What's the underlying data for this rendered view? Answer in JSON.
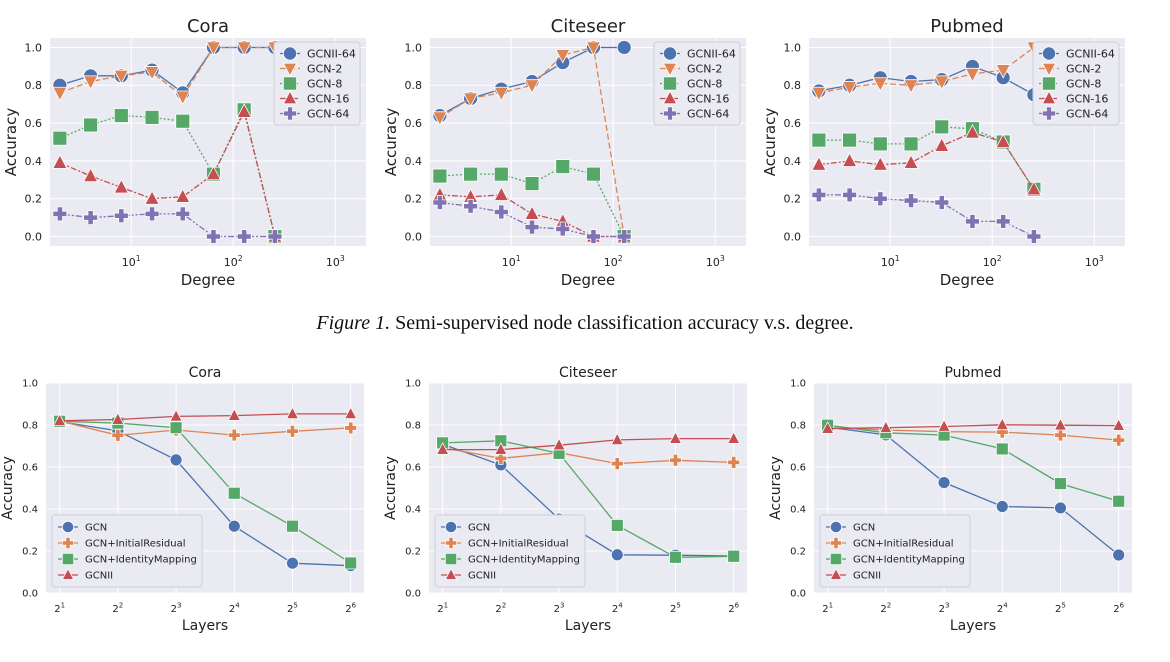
{
  "caption": {
    "label": "Figure 1.",
    "text": "Semi-supervised node classification accuracy v.s. degree."
  },
  "colors": {
    "blue": "#4c72b0",
    "orange": "#dd8452",
    "green": "#55a868",
    "red": "#c44e52",
    "purple": "#8172b3",
    "panel": "#eaeaf2"
  },
  "chart_data": [
    {
      "type": "line",
      "title": "Cora",
      "xlabel": "Degree",
      "ylabel": "Accuracy",
      "xscale": "log",
      "xlim": [
        1.6,
        2000
      ],
      "ylim": [
        -0.05,
        1.05
      ],
      "xticks": [
        10,
        100,
        1000
      ],
      "xtick_labels": [
        "10^1",
        "10^2",
        "10^3"
      ],
      "yticks": [
        0.0,
        0.2,
        0.4,
        0.6,
        0.8,
        1.0
      ],
      "ytick_labels": [
        "0.0",
        "0.2",
        "0.4",
        "0.6",
        "0.8",
        "1.0"
      ],
      "grid": true,
      "legend": "top-right",
      "series": [
        {
          "name": "GCNII-64",
          "color": "#4c72b0",
          "marker": "circle",
          "dash": "solid",
          "x": [
            2,
            4,
            8,
            16,
            32,
            64,
            128,
            256
          ],
          "y": [
            0.8,
            0.85,
            0.85,
            0.88,
            0.76,
            1.0,
            1.0,
            1.0
          ]
        },
        {
          "name": "GCN-2",
          "color": "#dd8452",
          "marker": "triangle-down",
          "dash": "dash",
          "x": [
            2,
            4,
            8,
            16,
            32,
            64,
            128,
            256
          ],
          "y": [
            0.76,
            0.82,
            0.85,
            0.87,
            0.74,
            1.0,
            1.0,
            1.0
          ]
        },
        {
          "name": "GCN-8",
          "color": "#55a868",
          "marker": "square",
          "dash": "dot",
          "x": [
            2,
            4,
            8,
            16,
            32,
            64,
            128,
            256
          ],
          "y": [
            0.52,
            0.59,
            0.64,
            0.63,
            0.61,
            0.33,
            0.67,
            0.0
          ]
        },
        {
          "name": "GCN-16",
          "color": "#c44e52",
          "marker": "triangle-up",
          "dash": "dashdot",
          "x": [
            2,
            4,
            8,
            16,
            32,
            64,
            128,
            256
          ],
          "y": [
            0.39,
            0.32,
            0.26,
            0.2,
            0.21,
            0.33,
            0.66,
            0.0
          ]
        },
        {
          "name": "GCN-64",
          "color": "#8172b3",
          "marker": "plus",
          "dash": "dashdotdot",
          "x": [
            2,
            4,
            8,
            16,
            32,
            64,
            128,
            256
          ],
          "y": [
            0.12,
            0.1,
            0.11,
            0.12,
            0.12,
            0.0,
            0.0,
            0.0
          ]
        }
      ]
    },
    {
      "type": "line",
      "title": "Citeseer",
      "xlabel": "Degree",
      "ylabel": "Accuracy",
      "xscale": "log",
      "xlim": [
        1.6,
        2000
      ],
      "ylim": [
        -0.05,
        1.05
      ],
      "xticks": [
        10,
        100,
        1000
      ],
      "xtick_labels": [
        "10^1",
        "10^2",
        "10^3"
      ],
      "yticks": [
        0.0,
        0.2,
        0.4,
        0.6,
        0.8,
        1.0
      ],
      "ytick_labels": [
        "0.0",
        "0.2",
        "0.4",
        "0.6",
        "0.8",
        "1.0"
      ],
      "grid": true,
      "legend": "top-right",
      "series": [
        {
          "name": "GCNII-64",
          "color": "#4c72b0",
          "marker": "circle",
          "dash": "solid",
          "x": [
            2,
            4,
            8,
            16,
            32,
            64,
            128
          ],
          "y": [
            0.64,
            0.73,
            0.78,
            0.82,
            0.92,
            1.0,
            1.0
          ]
        },
        {
          "name": "GCN-2",
          "color": "#dd8452",
          "marker": "triangle-down",
          "dash": "dash",
          "x": [
            2,
            4,
            8,
            16,
            32,
            64,
            128
          ],
          "y": [
            0.63,
            0.73,
            0.76,
            0.8,
            0.96,
            1.0,
            0.0
          ]
        },
        {
          "name": "GCN-8",
          "color": "#55a868",
          "marker": "square",
          "dash": "dot",
          "x": [
            2,
            4,
            8,
            16,
            32,
            64,
            128
          ],
          "y": [
            0.32,
            0.33,
            0.33,
            0.28,
            0.37,
            0.33,
            0.0
          ]
        },
        {
          "name": "GCN-16",
          "color": "#c44e52",
          "marker": "triangle-up",
          "dash": "dashdot",
          "x": [
            2,
            4,
            8,
            16,
            32,
            64,
            128
          ],
          "y": [
            0.22,
            0.21,
            0.22,
            0.12,
            0.08,
            0.0,
            0.0
          ]
        },
        {
          "name": "GCN-64",
          "color": "#8172b3",
          "marker": "plus",
          "dash": "dashdotdot",
          "x": [
            2,
            4,
            8,
            16,
            32,
            64,
            128
          ],
          "y": [
            0.18,
            0.16,
            0.13,
            0.05,
            0.04,
            0.0,
            0.0
          ]
        }
      ]
    },
    {
      "type": "line",
      "title": "Pubmed",
      "xlabel": "Degree",
      "ylabel": "Accuracy",
      "xscale": "log",
      "xlim": [
        1.6,
        2000
      ],
      "ylim": [
        -0.05,
        1.05
      ],
      "xticks": [
        10,
        100,
        1000
      ],
      "xtick_labels": [
        "10^1",
        "10^2",
        "10^3"
      ],
      "yticks": [
        0.0,
        0.2,
        0.4,
        0.6,
        0.8,
        1.0
      ],
      "ytick_labels": [
        "0.0",
        "0.2",
        "0.4",
        "0.6",
        "0.8",
        "1.0"
      ],
      "grid": true,
      "legend": "top-right",
      "series": [
        {
          "name": "GCNII-64",
          "color": "#4c72b0",
          "marker": "circle",
          "dash": "solid",
          "x": [
            2,
            4,
            8,
            16,
            32,
            64,
            128,
            256
          ],
          "y": [
            0.77,
            0.8,
            0.84,
            0.82,
            0.83,
            0.9,
            0.84,
            0.75
          ]
        },
        {
          "name": "GCN-2",
          "color": "#dd8452",
          "marker": "triangle-down",
          "dash": "dash",
          "x": [
            2,
            4,
            8,
            16,
            32,
            64,
            128,
            256
          ],
          "y": [
            0.76,
            0.79,
            0.81,
            0.8,
            0.82,
            0.86,
            0.88,
            1.0
          ]
        },
        {
          "name": "GCN-8",
          "color": "#55a868",
          "marker": "square",
          "dash": "dot",
          "x": [
            2,
            4,
            8,
            16,
            32,
            64,
            128,
            256
          ],
          "y": [
            0.51,
            0.51,
            0.49,
            0.49,
            0.58,
            0.57,
            0.5,
            0.25
          ]
        },
        {
          "name": "GCN-16",
          "color": "#c44e52",
          "marker": "triangle-up",
          "dash": "dashdot",
          "x": [
            2,
            4,
            8,
            16,
            32,
            64,
            128,
            256
          ],
          "y": [
            0.38,
            0.4,
            0.38,
            0.39,
            0.48,
            0.55,
            0.5,
            0.25
          ]
        },
        {
          "name": "GCN-64",
          "color": "#8172b3",
          "marker": "plus",
          "dash": "dashdotdot",
          "x": [
            2,
            4,
            8,
            16,
            32,
            64,
            128,
            256
          ],
          "y": [
            0.22,
            0.22,
            0.2,
            0.19,
            0.18,
            0.08,
            0.08,
            0.0
          ]
        }
      ]
    },
    {
      "type": "line",
      "title": "Cora",
      "xlabel": "Layers",
      "ylabel": "Accuracy",
      "xscale": "log2",
      "xlim": [
        1.7,
        75
      ],
      "ylim": [
        0.0,
        1.0
      ],
      "xticks": [
        2,
        4,
        8,
        16,
        32,
        64
      ],
      "xtick_labels": [
        "2^1",
        "2^2",
        "2^3",
        "2^4",
        "2^5",
        "2^6"
      ],
      "yticks": [
        0.0,
        0.2,
        0.4,
        0.6,
        0.8,
        1.0
      ],
      "ytick_labels": [
        "0.0",
        "0.2",
        "0.4",
        "0.6",
        "0.8",
        "1.0"
      ],
      "grid": true,
      "legend": "bottom-left",
      "series": [
        {
          "name": "GCN",
          "color": "#4c72b0",
          "marker": "circle",
          "dash": "solid",
          "x": [
            2,
            4,
            8,
            16,
            32,
            64
          ],
          "y": [
            0.816,
            0.772,
            0.634,
            0.318,
            0.142,
            0.13
          ]
        },
        {
          "name": "GCN+InitialResidual",
          "color": "#dd8452",
          "marker": "plus",
          "dash": "solid",
          "x": [
            2,
            4,
            8,
            16,
            32,
            64
          ],
          "y": [
            0.819,
            0.751,
            0.776,
            0.752,
            0.77,
            0.786
          ]
        },
        {
          "name": "GCN+IdentityMapping",
          "color": "#55a868",
          "marker": "square",
          "dash": "solid",
          "x": [
            2,
            4,
            8,
            16,
            32,
            64
          ],
          "y": [
            0.818,
            0.809,
            0.787,
            0.475,
            0.318,
            0.143
          ]
        },
        {
          "name": "GCNII",
          "color": "#c44e52",
          "marker": "triangle-up",
          "dash": "solid",
          "x": [
            2,
            4,
            8,
            16,
            32,
            64
          ],
          "y": [
            0.82,
            0.826,
            0.841,
            0.845,
            0.853,
            0.853
          ]
        }
      ]
    },
    {
      "type": "line",
      "title": "Citeseer",
      "xlabel": "Layers",
      "ylabel": "Accuracy",
      "xscale": "log2",
      "xlim": [
        1.7,
        75
      ],
      "ylim": [
        0.0,
        1.0
      ],
      "xticks": [
        2,
        4,
        8,
        16,
        32,
        64
      ],
      "xtick_labels": [
        "2^1",
        "2^2",
        "2^3",
        "2^4",
        "2^5",
        "2^6"
      ],
      "yticks": [
        0.0,
        0.2,
        0.4,
        0.6,
        0.8,
        1.0
      ],
      "ytick_labels": [
        "0.0",
        "0.2",
        "0.4",
        "0.6",
        "0.8",
        "1.0"
      ],
      "grid": true,
      "legend": "bottom-left",
      "series": [
        {
          "name": "GCN",
          "color": "#4c72b0",
          "marker": "circle",
          "dash": "solid",
          "x": [
            2,
            4,
            8,
            16,
            32,
            64
          ],
          "y": [
            0.708,
            0.61,
            0.352,
            0.182,
            0.18,
            0.176
          ]
        },
        {
          "name": "GCN+InitialResidual",
          "color": "#dd8452",
          "marker": "plus",
          "dash": "solid",
          "x": [
            2,
            4,
            8,
            16,
            32,
            64
          ],
          "y": [
            0.692,
            0.641,
            0.668,
            0.616,
            0.632,
            0.622
          ]
        },
        {
          "name": "GCN+IdentityMapping",
          "color": "#55a868",
          "marker": "square",
          "dash": "solid",
          "x": [
            2,
            4,
            8,
            16,
            32,
            64
          ],
          "y": [
            0.715,
            0.725,
            0.665,
            0.322,
            0.17,
            0.175
          ]
        },
        {
          "name": "GCNII",
          "color": "#c44e52",
          "marker": "triangle-up",
          "dash": "solid",
          "x": [
            2,
            4,
            8,
            16,
            32,
            64
          ],
          "y": [
            0.683,
            0.683,
            0.704,
            0.729,
            0.735,
            0.735
          ]
        }
      ]
    },
    {
      "type": "line",
      "title": "Pubmed",
      "xlabel": "Layers",
      "ylabel": "Accuracy",
      "xscale": "log2",
      "xlim": [
        1.7,
        75
      ],
      "ylim": [
        0.0,
        1.0
      ],
      "xticks": [
        2,
        4,
        8,
        16,
        32,
        64
      ],
      "xtick_labels": [
        "2^1",
        "2^2",
        "2^3",
        "2^4",
        "2^5",
        "2^6"
      ],
      "yticks": [
        0.0,
        0.2,
        0.4,
        0.6,
        0.8,
        1.0
      ],
      "ytick_labels": [
        "0.0",
        "0.2",
        "0.4",
        "0.6",
        "0.8",
        "1.0"
      ],
      "grid": true,
      "legend": "bottom-left",
      "series": [
        {
          "name": "GCN",
          "color": "#4c72b0",
          "marker": "circle",
          "dash": "solid",
          "x": [
            2,
            4,
            8,
            16,
            32,
            64
          ],
          "y": [
            0.79,
            0.753,
            0.526,
            0.412,
            0.405,
            0.181
          ]
        },
        {
          "name": "GCN+InitialResidual",
          "color": "#dd8452",
          "marker": "plus",
          "dash": "solid",
          "x": [
            2,
            4,
            8,
            16,
            32,
            64
          ],
          "y": [
            0.787,
            0.776,
            0.768,
            0.766,
            0.752,
            0.728
          ]
        },
        {
          "name": "GCN+IdentityMapping",
          "color": "#55a868",
          "marker": "square",
          "dash": "solid",
          "x": [
            2,
            4,
            8,
            16,
            32,
            64
          ],
          "y": [
            0.799,
            0.763,
            0.752,
            0.686,
            0.521,
            0.437
          ]
        },
        {
          "name": "GCNII",
          "color": "#c44e52",
          "marker": "triangle-up",
          "dash": "solid",
          "x": [
            2,
            4,
            8,
            16,
            32,
            64
          ],
          "y": [
            0.783,
            0.787,
            0.793,
            0.801,
            0.799,
            0.797
          ]
        }
      ]
    }
  ]
}
